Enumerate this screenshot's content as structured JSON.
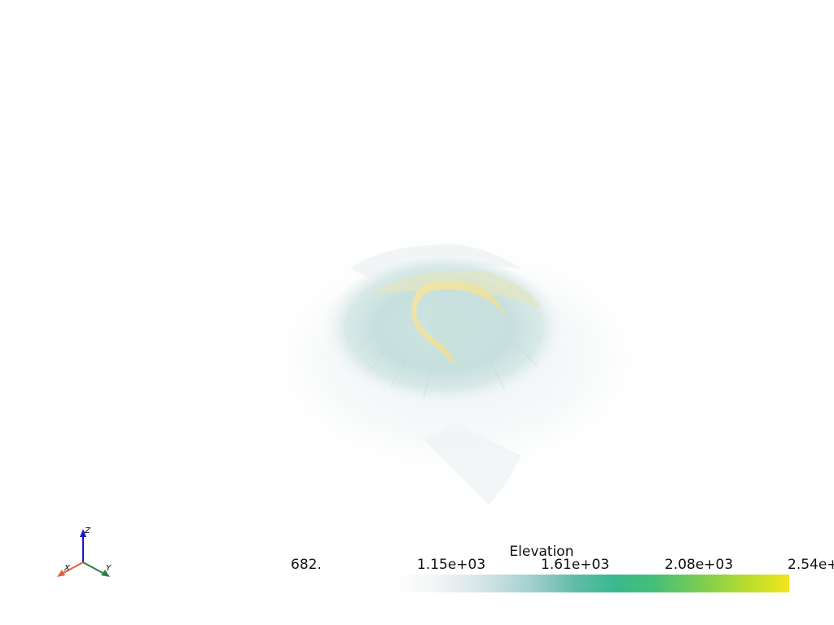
{
  "scalar_bar": {
    "title": "Elevation",
    "ticks": [
      "682.",
      "1.15e+03",
      "1.61e+03",
      "2.08e+03",
      "2.54e+"
    ],
    "range": [
      682,
      2540
    ],
    "colormap": [
      "#ffffff",
      "#d7e6e8",
      "#62bba9",
      "#3ab88e",
      "#7ccd51",
      "#f1e51d"
    ]
  },
  "axes": {
    "x_label": "X",
    "y_label": "Y",
    "z_label": "Z",
    "x_color": "#e0603e",
    "y_color": "#2e7d45",
    "z_color": "#1a1acd"
  },
  "background": "#ffffff",
  "terrain": {
    "description_icon": "volcano-terrain-surface",
    "base_color": "#c9e2e0",
    "rim_color": "#f0e3a4"
  }
}
